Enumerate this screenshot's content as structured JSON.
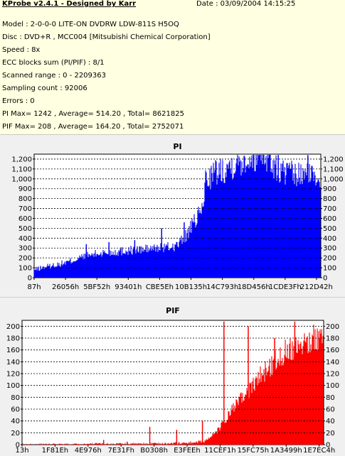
{
  "header": {
    "title": "KProbe v2.4.1 - Designed by Karr",
    "date": "Date : 03/09/2004 14:15:25"
  },
  "info": {
    "model": "Model : 2-0-0-0 LITE-ON DVDRW LDW-811S   H5OQ",
    "disc": "Disc : DVD+R , MCC004 [Mitsubishi Chemical Corporation]",
    "speed": "Speed : 8x",
    "ecc": "ECC blocks sum (PI/PIF) : 8/1",
    "scanned": "Scanned range : 0 - 2209363",
    "sampling": "Sampling count : 92006",
    "errors": "Errors : 0",
    "pi_stats": "PI Max= 1242 , Average= 514.20 , Total= 8621825",
    "pif_stats": "PIF Max= 208 , Average= 164.20 , Total= 2752071"
  },
  "colors": {
    "pi_fill": "#0000ff",
    "pif_fill": "#ff0000",
    "grid": "#000000",
    "plot_bg": "#ffffff",
    "panel_bg": "#f0f0f0",
    "info_bg": "#ffffe1"
  },
  "chart_data": [
    {
      "type": "area",
      "title": "PI",
      "ylim": [
        0,
        1250
      ],
      "yticks": [
        0,
        100,
        200,
        300,
        400,
        500,
        600,
        700,
        800,
        900,
        1000,
        1100,
        1200
      ],
      "xticks": [
        "87h",
        "26056h",
        "5BF52h",
        "93401h",
        "CBE5Eh",
        "10B135h",
        "14C793h",
        "18D456h",
        "1CDE3Fh",
        "212D42h"
      ],
      "grid": true,
      "x": [
        0.0,
        0.04,
        0.08,
        0.12,
        0.16,
        0.2,
        0.24,
        0.28,
        0.32,
        0.36,
        0.4,
        0.44,
        0.48,
        0.5,
        0.52,
        0.54,
        0.56,
        0.58,
        0.59,
        0.6,
        0.62,
        0.64,
        0.66,
        0.68,
        0.7,
        0.72,
        0.74,
        0.76,
        0.78,
        0.8,
        0.82,
        0.84,
        0.86,
        0.88,
        0.9,
        0.92,
        0.94,
        0.96,
        0.98,
        1.0
      ],
      "values": [
        80,
        110,
        130,
        160,
        200,
        230,
        250,
        260,
        275,
        280,
        290,
        300,
        310,
        330,
        380,
        460,
        560,
        650,
        720,
        1000,
        1040,
        1070,
        1100,
        1130,
        1160,
        1180,
        1200,
        1230,
        1240,
        1242,
        1230,
        1100,
        1080,
        1060,
        1040,
        1030,
        1030,
        1030,
        1030,
        1030
      ],
      "peaks": [
        340,
        360,
        380,
        500,
        560,
        640,
        720,
        1240,
        1242,
        1240
      ]
    },
    {
      "type": "area",
      "title": "PIF",
      "ylim": [
        0,
        210
      ],
      "yticks": [
        0,
        20,
        40,
        60,
        80,
        100,
        120,
        140,
        160,
        180,
        200
      ],
      "xticks": [
        "13h",
        "1F81Eh",
        "4E976h",
        "7E31Fh",
        "B0308h",
        "E3FEEh",
        "11CEF1h",
        "15FC75h",
        "1A3499h",
        "1E7EC4h"
      ],
      "grid": true,
      "x": [
        0.0,
        0.05,
        0.1,
        0.15,
        0.2,
        0.25,
        0.3,
        0.35,
        0.4,
        0.45,
        0.5,
        0.55,
        0.6,
        0.62,
        0.64,
        0.66,
        0.68,
        0.7,
        0.72,
        0.74,
        0.76,
        0.78,
        0.8,
        0.82,
        0.84,
        0.86,
        0.88,
        0.9,
        0.92,
        0.94,
        0.96,
        0.98,
        1.0
      ],
      "values": [
        0,
        0,
        0,
        0,
        0,
        1,
        1,
        1,
        1,
        2,
        2,
        3,
        5,
        10,
        18,
        30,
        45,
        60,
        72,
        85,
        95,
        110,
        120,
        130,
        140,
        150,
        160,
        165,
        170,
        175,
        178,
        180,
        180
      ],
      "peaks": [
        8,
        5,
        30,
        25,
        40,
        208,
        200,
        180,
        208
      ]
    }
  ]
}
